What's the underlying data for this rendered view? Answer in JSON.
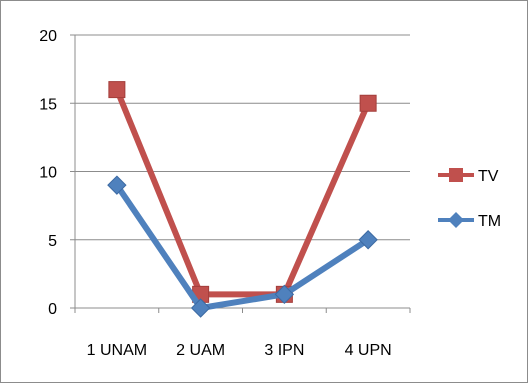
{
  "chart_data": {
    "type": "line",
    "categories": [
      "1 UNAM",
      "2 UAM",
      "3 IPN",
      "4 UPN"
    ],
    "series": [
      {
        "name": "TV",
        "values": [
          16,
          1,
          1,
          15
        ],
        "color": "#c0504d",
        "marker": "square"
      },
      {
        "name": "TM",
        "values": [
          9,
          0,
          1,
          5
        ],
        "color": "#4f81bd",
        "marker": "diamond"
      }
    ],
    "ylim": [
      0,
      20
    ],
    "yticks": [
      "0",
      "5",
      "10",
      "15",
      "20"
    ],
    "grid": true,
    "legend_position": "right",
    "title": "",
    "xlabel": "",
    "ylabel": ""
  }
}
